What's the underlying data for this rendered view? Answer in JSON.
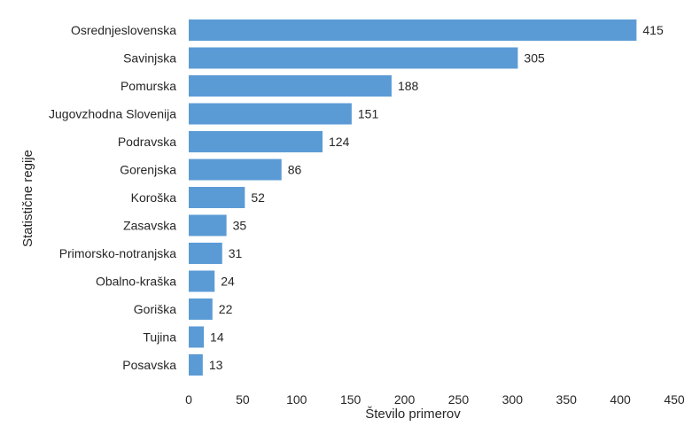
{
  "chart_data": {
    "type": "bar",
    "orientation": "horizontal",
    "title": "",
    "xlabel": "Število primerov",
    "ylabel": "Statistične regije",
    "categories": [
      "Osrednjeslovenska",
      "Savinjska",
      "Pomurska",
      "Jugovzhodna Slovenija",
      "Podravska",
      "Gorenjska",
      "Koroška",
      "Zasavska",
      "Primorsko-notranjska",
      "Obalno-kraška",
      "Goriška",
      "Tujina",
      "Posavska"
    ],
    "values": [
      415,
      305,
      188,
      151,
      124,
      86,
      52,
      35,
      31,
      24,
      22,
      14,
      13
    ],
    "xlim": [
      0,
      450
    ],
    "xticks": [
      0,
      50,
      100,
      150,
      200,
      250,
      300,
      350,
      400,
      450
    ],
    "grid": false,
    "legend": "none",
    "bar_color": "#5B9BD5",
    "data_labels": true
  }
}
